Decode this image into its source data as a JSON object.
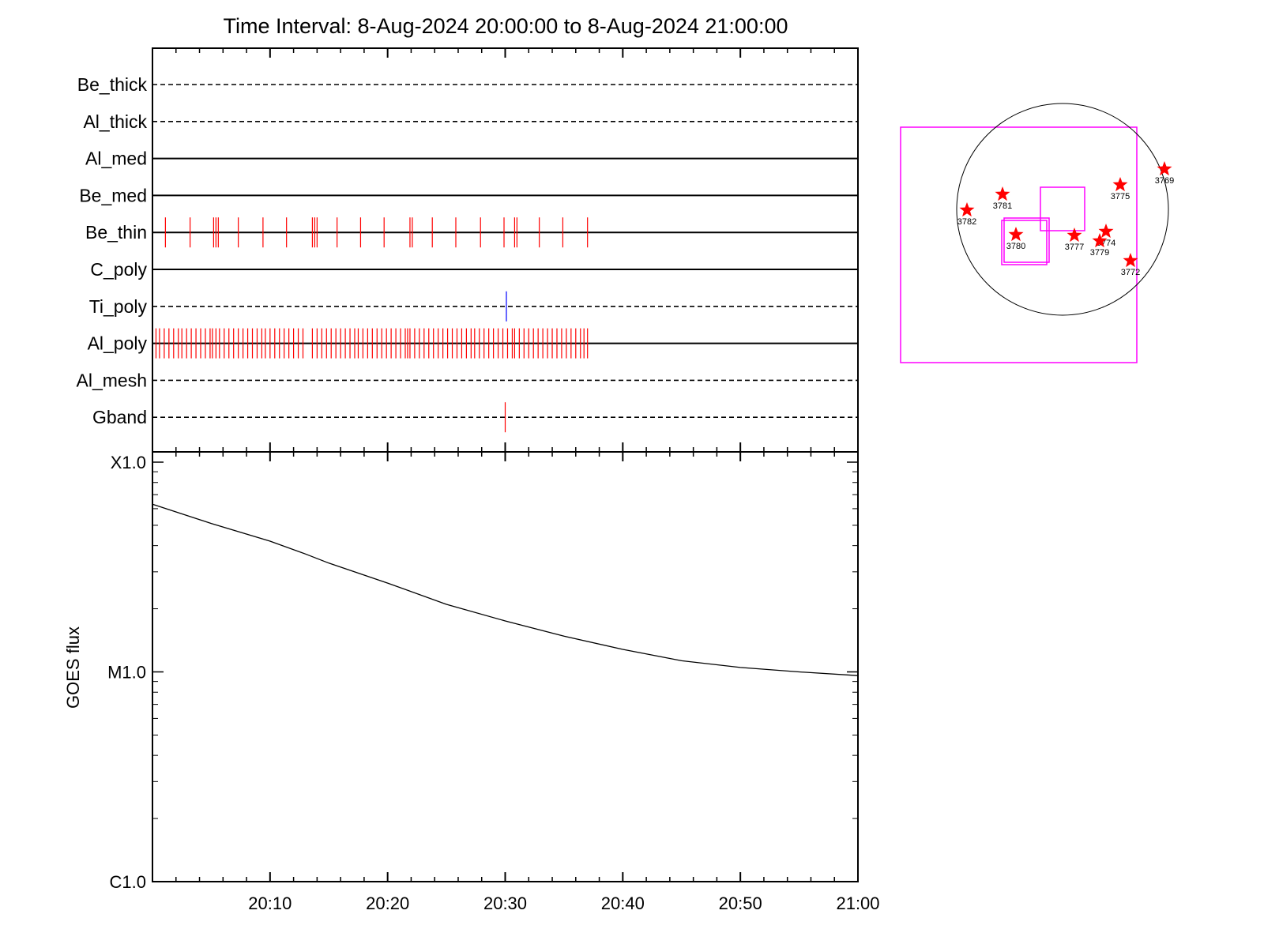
{
  "title": "Time Interval:  8-Aug-2024 20:00:00 to  8-Aug-2024 21:00:00",
  "colors": {
    "axis": "#000000",
    "exposure": "#ff0000",
    "ti_poly_mark": "#0000ff",
    "fov_box": "#ff00ff",
    "star": "#ff0000",
    "disk": "#000000"
  },
  "chart_data": [
    {
      "type": "timeline",
      "x_range_minutes": [
        0,
        60
      ],
      "rows": [
        {
          "name": "Be_thick",
          "style": "dashed",
          "marks": [],
          "mark_color": "#ff0000"
        },
        {
          "name": "Al_thick",
          "style": "dashed",
          "marks": [],
          "mark_color": "#ff0000"
        },
        {
          "name": "Al_med",
          "style": "solid",
          "marks": [],
          "mark_color": "#ff0000"
        },
        {
          "name": "Be_med",
          "style": "solid",
          "marks": [],
          "mark_color": "#ff0000"
        },
        {
          "name": "Be_thin",
          "style": "solid",
          "mark_color": "#ff0000",
          "marks": [
            1.1,
            3.2,
            5.2,
            5.4,
            5.6,
            7.3,
            9.4,
            11.4,
            13.6,
            13.8,
            14.0,
            15.7,
            17.7,
            19.7,
            21.9,
            22.1,
            23.8,
            25.8,
            27.9,
            29.9,
            30.8,
            31.0,
            32.9,
            34.9,
            37.0
          ],
          "mark_span": "full"
        },
        {
          "name": "C_poly",
          "style": "solid",
          "marks": [],
          "mark_color": "#ff0000"
        },
        {
          "name": "Ti_poly",
          "style": "dashed",
          "mark_color": "#0000ff",
          "marks": [
            30.1
          ],
          "mark_span": "full"
        },
        {
          "name": "Al_poly",
          "style": "solid",
          "mark_color": "#ff0000",
          "marks": [
            0.3,
            0.6,
            1.0,
            1.4,
            1.8,
            2.2,
            2.5,
            2.9,
            3.3,
            3.7,
            4.1,
            4.5,
            4.9,
            5.1,
            5.4,
            5.7,
            6.1,
            6.5,
            6.9,
            7.3,
            7.7,
            8.1,
            8.5,
            8.9,
            9.3,
            9.6,
            10.0,
            10.4,
            10.8,
            11.2,
            11.6,
            12.0,
            12.4,
            12.8,
            13.6,
            14.0,
            14.4,
            14.8,
            15.2,
            15.6,
            16.0,
            16.4,
            16.8,
            17.2,
            17.5,
            17.9,
            18.3,
            18.7,
            19.1,
            19.5,
            19.9,
            20.3,
            20.7,
            21.1,
            21.5,
            21.7,
            21.9,
            22.3,
            22.7,
            23.1,
            23.5,
            23.9,
            24.3,
            24.7,
            25.1,
            25.5,
            25.9,
            26.3,
            26.7,
            27.1,
            27.4,
            27.8,
            28.2,
            28.6,
            29.0,
            29.4,
            29.8,
            30.2,
            30.6,
            30.8,
            31.2,
            31.6,
            32.0,
            32.4,
            32.8,
            33.2,
            33.6,
            34.0,
            34.4,
            34.8,
            35.2,
            35.6,
            36.0,
            36.4,
            36.7,
            37.0
          ],
          "mark_span": "full"
        },
        {
          "name": "Al_mesh",
          "style": "dashed",
          "marks": [],
          "mark_color": "#ff0000"
        },
        {
          "name": "Gband",
          "style": "dashed",
          "mark_color": "#ff0000",
          "marks": [
            30.0
          ],
          "mark_span": "full"
        }
      ]
    },
    {
      "type": "line",
      "ylabel": "GOES flux",
      "y_scale": "log",
      "ylim": [
        1e-06,
        0.0001
      ],
      "y_ticks": [
        {
          "value": 0.0001,
          "label": "X1.0"
        },
        {
          "value": 1e-05,
          "label": "M1.0"
        },
        {
          "value": 1e-06,
          "label": "C1.0"
        }
      ],
      "x_range_minutes": [
        0,
        60
      ],
      "x_ticks": [
        {
          "value": 10,
          "label": "20:10"
        },
        {
          "value": 20,
          "label": "20:20"
        },
        {
          "value": 30,
          "label": "20:30"
        },
        {
          "value": 40,
          "label": "20:40"
        },
        {
          "value": 50,
          "label": "20:50"
        },
        {
          "value": 60,
          "label": "21:00"
        }
      ],
      "series": [
        {
          "x": [
            0,
            5,
            10,
            13,
            15,
            20,
            25,
            30,
            35,
            40,
            45,
            50,
            55,
            60
          ],
          "y": [
            6.3e-05,
            5.1e-05,
            4.2e-05,
            3.65e-05,
            3.3e-05,
            2.65e-05,
            2.1e-05,
            1.75e-05,
            1.48e-05,
            1.28e-05,
            1.13e-05,
            1.05e-05,
            1e-05,
            9.6e-06
          ]
        }
      ]
    },
    {
      "type": "solar_disk_map",
      "regions": [
        {
          "label": "3769"
        },
        {
          "label": "3775"
        },
        {
          "label": "3781"
        },
        {
          "label": "3782"
        },
        {
          "label": "3780"
        },
        {
          "label": "3777"
        },
        {
          "label": "3774"
        },
        {
          "label": "3779"
        },
        {
          "label": "3772"
        }
      ]
    }
  ]
}
